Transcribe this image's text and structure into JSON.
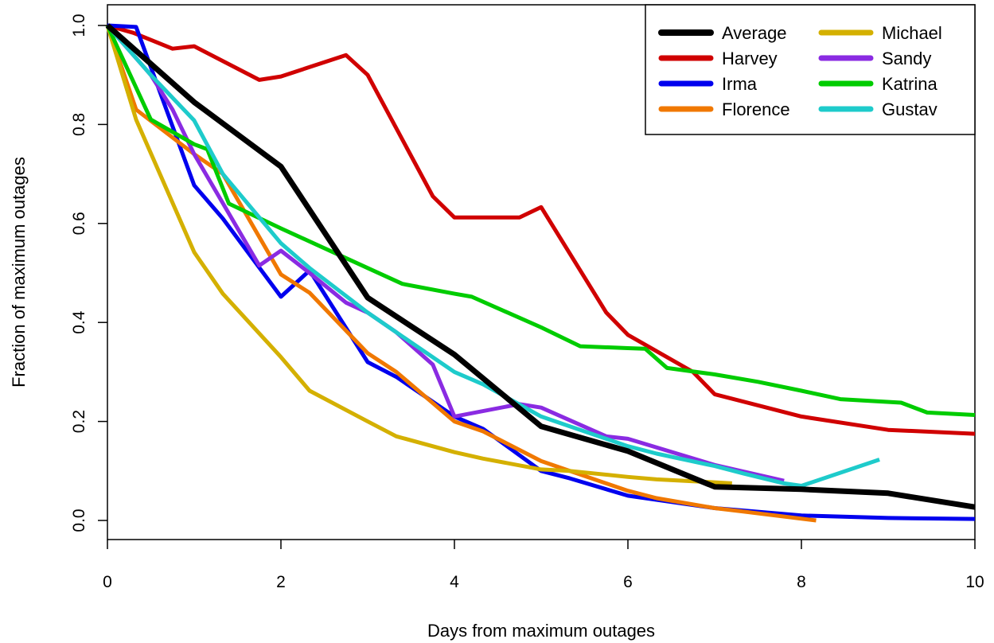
{
  "chart_data": {
    "type": "line",
    "title": "",
    "xlabel": "Days from maximum outages",
    "ylabel": "Fraction of maximum outages",
    "xlim": [
      0,
      10
    ],
    "ylim": [
      0,
      1
    ],
    "xticks": [
      0,
      2,
      4,
      6,
      8,
      10
    ],
    "yticks": [
      0.0,
      0.2,
      0.4,
      0.6,
      0.8,
      1.0
    ],
    "xtick_labels": [
      "0",
      "2",
      "4",
      "6",
      "8",
      "10"
    ],
    "ytick_labels": [
      "0.0",
      "0.2",
      "0.4",
      "0.6",
      "0.8",
      "1.0"
    ],
    "grid": false,
    "legend_position": "top-right",
    "series": [
      {
        "name": "Average",
        "color": "#000000",
        "x": [
          0,
          1,
          2,
          3,
          4,
          5,
          6,
          7,
          8,
          9,
          10
        ],
        "y": [
          1.0,
          0.845,
          0.715,
          0.45,
          0.335,
          0.19,
          0.14,
          0.068,
          0.063,
          0.055,
          0.027
        ]
      },
      {
        "name": "Harvey",
        "color": "#d00000",
        "x": [
          0,
          0.3,
          0.75,
          1.0,
          1.75,
          2.0,
          2.75,
          3.0,
          3.75,
          4.0,
          4.75,
          5.0,
          5.75,
          6.0,
          6.75,
          7.0,
          8.0,
          9.0,
          10.0
        ],
        "y": [
          1.0,
          0.985,
          0.953,
          0.958,
          0.89,
          0.897,
          0.94,
          0.9,
          0.655,
          0.612,
          0.612,
          0.633,
          0.42,
          0.375,
          0.3,
          0.255,
          0.21,
          0.183,
          0.175
        ]
      },
      {
        "name": "Irma",
        "color": "#0000ee",
        "x": [
          0,
          0.33,
          1.0,
          1.33,
          2.0,
          2.33,
          3.0,
          3.33,
          4.0,
          4.33,
          5.0,
          5.33,
          6.0,
          7.0,
          8.0,
          9.0,
          10.0
        ],
        "y": [
          1.0,
          0.997,
          0.677,
          0.61,
          0.452,
          0.505,
          0.32,
          0.29,
          0.21,
          0.185,
          0.1,
          0.085,
          0.05,
          0.025,
          0.01,
          0.005,
          0.003
        ]
      },
      {
        "name": "Florence",
        "color": "#f07800",
        "x": [
          0,
          0.33,
          1.0,
          1.33,
          2.0,
          2.33,
          3.0,
          3.33,
          4.0,
          4.33,
          5.0,
          5.33,
          6.0,
          6.33,
          7.0,
          7.33,
          8.17
        ],
        "y": [
          1.0,
          0.83,
          0.74,
          0.7,
          0.497,
          0.46,
          0.338,
          0.3,
          0.2,
          0.18,
          0.12,
          0.1,
          0.06,
          0.045,
          0.025,
          0.018,
          0.0
        ]
      },
      {
        "name": "Michael",
        "color": "#d4b000",
        "x": [
          0,
          0.33,
          1.0,
          1.33,
          2.0,
          2.33,
          3.0,
          3.33,
          4.0,
          4.33,
          5.0,
          5.33,
          6.0,
          6.33,
          7.0,
          7.2
        ],
        "y": [
          1.0,
          0.81,
          0.542,
          0.458,
          0.33,
          0.262,
          0.2,
          0.17,
          0.138,
          0.125,
          0.103,
          0.1,
          0.088,
          0.083,
          0.077,
          0.075
        ]
      },
      {
        "name": "Sandy",
        "color": "#8a2be2",
        "x": [
          0,
          0.5,
          0.75,
          1.0,
          1.75,
          2.0,
          2.33,
          2.75,
          3.0,
          3.33,
          3.75,
          4.0,
          4.75,
          5.0,
          5.75,
          6.0,
          7.0,
          7.8
        ],
        "y": [
          1.0,
          0.9,
          0.83,
          0.74,
          0.515,
          0.545,
          0.5,
          0.44,
          0.42,
          0.38,
          0.315,
          0.21,
          0.235,
          0.228,
          0.17,
          0.165,
          0.112,
          0.08
        ]
      },
      {
        "name": "Katrina",
        "color": "#00cc00",
        "x": [
          0,
          0.5,
          1.0,
          1.15,
          1.4,
          2.0,
          3.0,
          3.4,
          4.0,
          4.2,
          5.0,
          5.45,
          6.0,
          6.2,
          6.45,
          7.0,
          7.5,
          8.0,
          8.45,
          9.15,
          9.45,
          10.0
        ],
        "y": [
          1.0,
          0.81,
          0.76,
          0.75,
          0.64,
          0.59,
          0.51,
          0.478,
          0.458,
          0.452,
          0.39,
          0.352,
          0.348,
          0.347,
          0.308,
          0.295,
          0.28,
          0.262,
          0.245,
          0.238,
          0.218,
          0.213
        ]
      },
      {
        "name": "Gustav",
        "color": "#1ecbcb",
        "x": [
          0,
          0.5,
          1.0,
          1.33,
          2.0,
          2.33,
          3.0,
          3.33,
          4.0,
          4.33,
          5.0,
          5.33,
          6.0,
          6.33,
          7.0,
          7.33,
          7.8,
          8.0,
          8.9
        ],
        "y": [
          1.0,
          0.9,
          0.808,
          0.7,
          0.56,
          0.51,
          0.42,
          0.38,
          0.3,
          0.275,
          0.21,
          0.19,
          0.15,
          0.135,
          0.11,
          0.095,
          0.075,
          0.07,
          0.123
        ]
      }
    ]
  }
}
